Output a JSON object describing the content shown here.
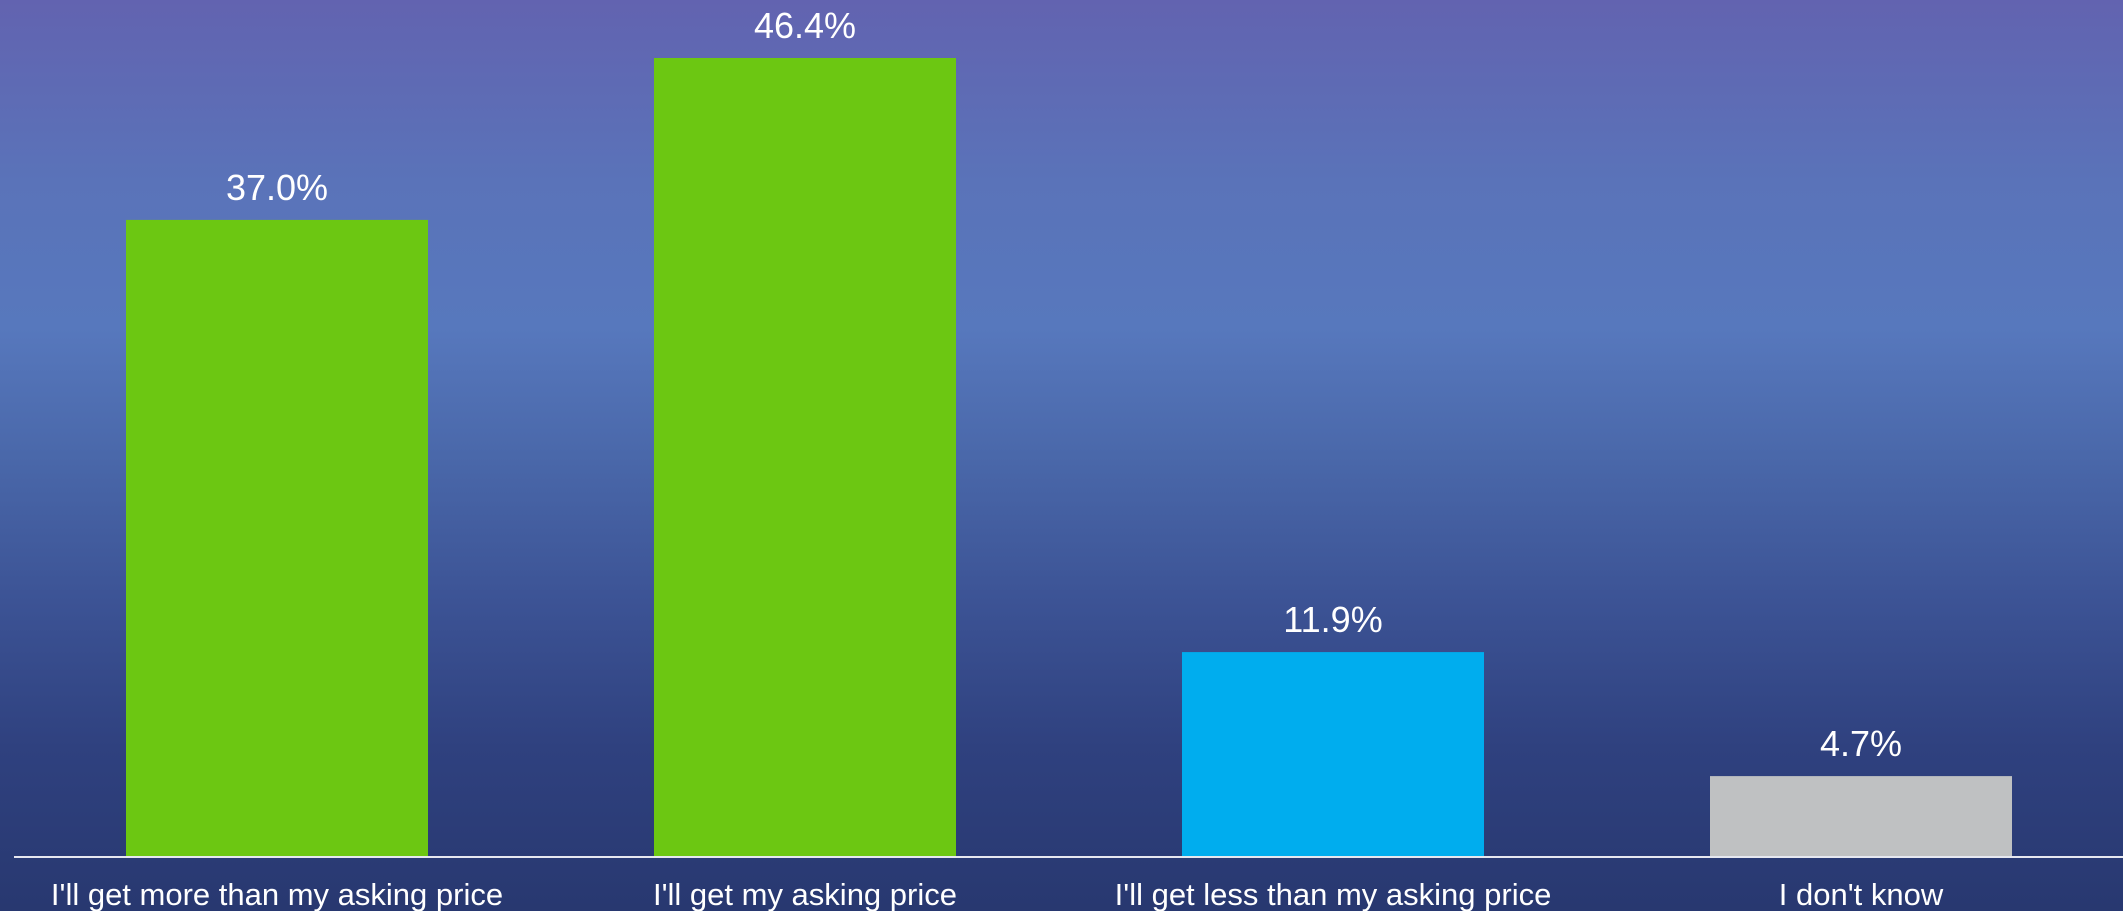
{
  "chart_data": {
    "type": "bar",
    "title": "",
    "xlabel": "",
    "ylabel": "",
    "categories": [
      "I'll get more than my asking price",
      "I'll get my asking price",
      "I'll get less than my asking price",
      "I don't know"
    ],
    "values": [
      37.0,
      46.4,
      11.9,
      4.7
    ],
    "value_labels": [
      "37.0%",
      "46.4%",
      "11.9%",
      "4.7%"
    ],
    "bar_colors": [
      "#6cc712",
      "#6cc712",
      "#00adee",
      "#bfc1c2"
    ],
    "ylim": [
      0,
      46.4
    ],
    "grid": false,
    "legend": "none"
  },
  "colors": {
    "axis_line": "#e6e8f0",
    "text": "#ffffff"
  }
}
